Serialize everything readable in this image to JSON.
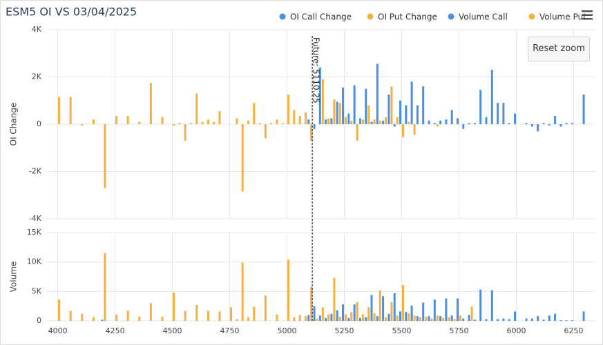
{
  "chart_data": [
    {
      "type": "bar",
      "title": "ESM5 OI VS 03/04/2025",
      "ylabel": "OI Change",
      "xlim": [
        3950,
        6345
      ],
      "ylim": [
        -4000,
        4000
      ],
      "yticks": [
        {
          "value": -4000,
          "label": "-4K"
        },
        {
          "value": -2000,
          "label": "-2K"
        },
        0,
        {
          "value": 2000,
          "label": "2K"
        },
        {
          "value": 4000,
          "label": "4K"
        }
      ],
      "grid": true,
      "annotation": {
        "text": "Future: 5110.25",
        "x": 5110.25
      },
      "series": [
        {
          "name": "OI Call Change",
          "color": "#4a90e2",
          "x": [
            5100,
            5125,
            5150,
            5175,
            5200,
            5225,
            5250,
            5275,
            5300,
            5325,
            5350,
            5375,
            5400,
            5425,
            5450,
            5475,
            5500,
            5525,
            5550,
            5575,
            5600,
            5625,
            5650,
            5675,
            5700,
            5725,
            5750,
            5775,
            5800,
            5825,
            5850,
            5875,
            5900,
            5925,
            5950,
            5975,
            6000,
            6050,
            6075,
            6100,
            6125,
            6150,
            6175,
            6200,
            6225,
            6250,
            6300
          ],
          "values": [
            200,
            -200,
            2400,
            200,
            250,
            950,
            1550,
            450,
            1650,
            250,
            1500,
            100,
            2550,
            150,
            1250,
            -100,
            1000,
            800,
            1800,
            800,
            1600,
            150,
            50,
            150,
            200,
            600,
            250,
            -200,
            50,
            50,
            1450,
            300,
            2300,
            900,
            900,
            50,
            450,
            50,
            -100,
            -300,
            50,
            -50,
            350,
            -100,
            50,
            50,
            1250
          ]
        },
        {
          "name": "OI Put Change",
          "color": "#f5b041",
          "x": [
            4000,
            4050,
            4100,
            4150,
            4200,
            4250,
            4300,
            4350,
            4400,
            4450,
            4500,
            4525,
            4550,
            4575,
            4600,
            4625,
            4650,
            4675,
            4700,
            4775,
            4800,
            4825,
            4850,
            4875,
            4900,
            4925,
            4950,
            4975,
            5000,
            5025,
            5050,
            5075,
            5100,
            5150,
            5175,
            5200,
            5225,
            5250,
            5275,
            5300,
            5325,
            5350,
            5375,
            5400,
            5425,
            5450,
            5475,
            5500,
            5525,
            5550,
            5650
          ],
          "values": [
            1150,
            1150,
            -50,
            200,
            -2700,
            350,
            350,
            100,
            1750,
            300,
            -50,
            50,
            -700,
            50,
            1300,
            100,
            200,
            100,
            550,
            250,
            -2850,
            150,
            900,
            50,
            -600,
            50,
            200,
            50,
            1250,
            600,
            350,
            500,
            -700,
            1900,
            250,
            1050,
            900,
            300,
            150,
            -700,
            200,
            800,
            200,
            150,
            300,
            1600,
            300,
            -550,
            100,
            -450,
            -100
          ]
        }
      ]
    },
    {
      "type": "bar",
      "ylabel": "Volume",
      "xlim": [
        3950,
        6345
      ],
      "ylim": [
        0,
        15000
      ],
      "xticks": [
        4000,
        4250,
        4500,
        4750,
        5000,
        5250,
        5500,
        5750,
        6000,
        6250
      ],
      "yticks": [
        0,
        {
          "value": 5000,
          "label": "5K"
        },
        {
          "value": 10000,
          "label": "10K"
        },
        {
          "value": 15000,
          "label": "15K"
        }
      ],
      "grid": true,
      "series": [
        {
          "name": "Volume Call",
          "color": "#4a90e2",
          "x": [
            4200,
            5100,
            5125,
            5150,
            5175,
            5200,
            5225,
            5250,
            5275,
            5300,
            5325,
            5350,
            5375,
            5400,
            5425,
            5450,
            5475,
            5500,
            5525,
            5550,
            5575,
            5600,
            5625,
            5650,
            5675,
            5700,
            5725,
            5750,
            5775,
            5800,
            5825,
            5850,
            5875,
            5900,
            5925,
            5950,
            5975,
            6000,
            6050,
            6075,
            6100,
            6125,
            6150,
            6175,
            6200,
            6225,
            6250,
            6300
          ],
          "values": [
            200,
            1000,
            2500,
            900,
            500,
            1200,
            1800,
            2800,
            500,
            2800,
            500,
            600,
            4400,
            800,
            4200,
            1200,
            4700,
            1600,
            1500,
            2600,
            800,
            3100,
            800,
            3600,
            800,
            3800,
            900,
            3800,
            400,
            1000,
            200,
            5300,
            300,
            5200,
            300,
            400,
            300,
            1600,
            400,
            400,
            800,
            200,
            900,
            1200,
            100,
            100,
            100,
            1600
          ]
        },
        {
          "name": "Volume Put",
          "color": "#f5b041",
          "x": [
            4000,
            4050,
            4100,
            4150,
            4200,
            4250,
            4300,
            4350,
            4400,
            4450,
            4500,
            4550,
            4600,
            4650,
            4700,
            4750,
            4775,
            4800,
            4825,
            4850,
            4900,
            4950,
            5000,
            5025,
            5050,
            5075,
            5100,
            5125,
            5150,
            5175,
            5200,
            5225,
            5250,
            5275,
            5300,
            5325,
            5350,
            5375,
            5400,
            5425,
            5450,
            5475,
            5500,
            5525,
            5550,
            5575,
            5600,
            5625,
            5650,
            5675,
            5700,
            5725,
            5750,
            5800
          ],
          "values": [
            3600,
            1700,
            1200,
            600,
            11500,
            1100,
            1700,
            700,
            3000,
            700,
            4800,
            1700,
            2700,
            1700,
            1600,
            2300,
            300,
            9900,
            600,
            2400,
            4300,
            1100,
            10400,
            600,
            1000,
            800,
            5800,
            400,
            2300,
            1100,
            7300,
            700,
            1100,
            1500,
            3200,
            1100,
            2300,
            1300,
            5200,
            600,
            3200,
            900,
            6100,
            1300,
            900,
            600,
            700,
            400,
            900,
            500,
            600,
            300,
            900,
            2400
          ]
        }
      ]
    }
  ],
  "reset_button": "Reset zoom"
}
